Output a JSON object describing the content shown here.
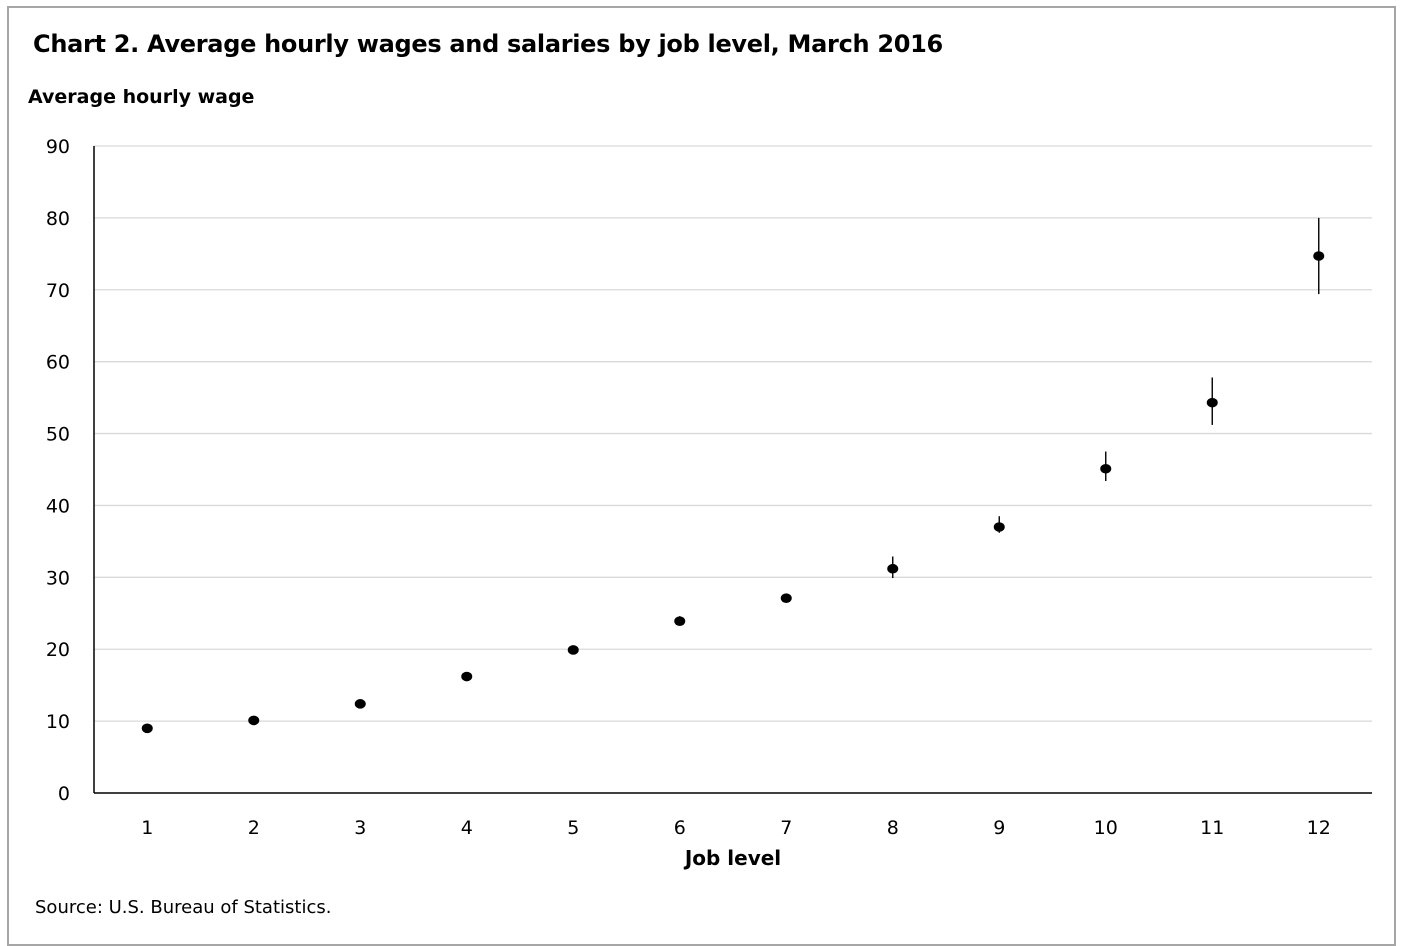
{
  "title": "Chart 2. Average hourly wages and salaries by job level, March 2016",
  "source": "Source: U.S. Bureau of Statistics.",
  "chart_data": {
    "type": "scatter",
    "title": "Chart 2. Average hourly wages and salaries by job level, March 2016",
    "ylabel": "Average hourly wage",
    "xlabel": "Job level",
    "x": [
      1,
      2,
      3,
      4,
      5,
      6,
      7,
      8,
      9,
      10,
      11,
      12
    ],
    "values": [
      9.0,
      10.1,
      12.4,
      16.2,
      19.9,
      23.9,
      27.1,
      31.2,
      37.0,
      45.1,
      54.3,
      74.7
    ],
    "error_low": [
      8.8,
      9.9,
      12.2,
      16.0,
      19.7,
      23.4,
      26.6,
      29.9,
      36.2,
      43.4,
      51.2,
      69.4
    ],
    "error_high": [
      9.2,
      10.3,
      12.6,
      16.4,
      20.1,
      24.6,
      27.7,
      32.9,
      38.5,
      47.5,
      57.8,
      80.0
    ],
    "xticks": [
      "1",
      "2",
      "3",
      "4",
      "5",
      "6",
      "7",
      "8",
      "9",
      "10",
      "11",
      "12"
    ],
    "yticks": [
      "0",
      "10",
      "20",
      "30",
      "40",
      "50",
      "60",
      "70",
      "80",
      "90"
    ],
    "ylim": [
      0,
      90
    ],
    "grid": true,
    "point_color": "#000000",
    "grid_color": "#d9d9d9"
  }
}
